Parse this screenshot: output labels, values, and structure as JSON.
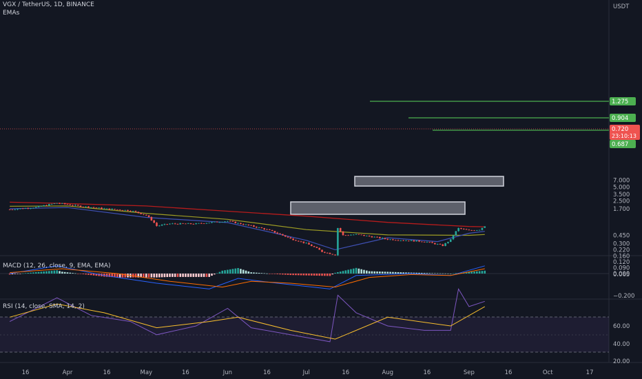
{
  "header": {
    "symbol_line": "VGX / TetherUS, 1D, BINANCE",
    "indicator_label": "EMAs"
  },
  "axis": {
    "currency": "USDT",
    "price_ticks": [
      "7.000",
      "5.000",
      "3.500",
      "2.500",
      "1.700",
      "0.450",
      "0.300",
      "0.220",
      "0.160",
      "0.120",
      "0.090",
      "0.065"
    ],
    "x_ticks": [
      "16",
      "Apr",
      "16",
      "May",
      "16",
      "Jun",
      "16",
      "Jul",
      "16",
      "Aug",
      "16",
      "Sep",
      "16",
      "Oct",
      "17"
    ]
  },
  "badges": {
    "level_1": "1.275",
    "level_2": "0.904",
    "last_price": "0.720",
    "countdown": "23:10:13",
    "level_3": "0.687"
  },
  "macd": {
    "label": "MACD (12, 26, close, 9, EMA, EMA)",
    "ticks": [
      "0.000",
      "−0.200"
    ]
  },
  "rsi": {
    "label": "RSI (14, close, SMA, 14, 2)",
    "ticks": [
      "60.00",
      "40.00",
      "20.00"
    ]
  },
  "colors": {
    "background": "#131722",
    "up": "#26a69a",
    "down": "#ef5350",
    "level_line": "#4caf50",
    "ema_long": "#b71c1c",
    "ema_mid": "#9e9d24",
    "ema_short": "#3f51b5",
    "rsi": "#7e57c2",
    "rsi_ma": "#fbc02d"
  },
  "chart_data": {
    "type": "line",
    "scale": "log",
    "price_series": [
      [
        "Mar 10",
        1.63
      ],
      [
        "Mar 20",
        1.82
      ],
      [
        "Mar 28",
        2.25
      ],
      [
        "Apr 5",
        1.95
      ],
      [
        "Apr 15",
        1.7
      ],
      [
        "Apr 25",
        1.55
      ],
      [
        "May 1",
        1.22
      ],
      [
        "May 5",
        0.72
      ],
      [
        "May 10",
        0.8
      ],
      [
        "May 20",
        0.8
      ],
      [
        "Jun 1",
        0.92
      ],
      [
        "Jun 5",
        0.82
      ],
      [
        "Jun 15",
        0.62
      ],
      [
        "Jun 25",
        0.38
      ],
      [
        "Jul 1",
        0.3
      ],
      [
        "Jul 7",
        0.2
      ],
      [
        "Jul 12",
        0.17
      ],
      [
        "Jul 13",
        0.65
      ],
      [
        "Jul 15",
        0.45
      ],
      [
        "Jul 20",
        0.47
      ],
      [
        "Aug 1",
        0.37
      ],
      [
        "Aug 15",
        0.33
      ],
      [
        "Aug 22",
        0.27
      ],
      [
        "Aug 25",
        0.36
      ],
      [
        "Aug 28",
        0.64
      ],
      [
        "Sep 1",
        0.57
      ],
      [
        "Sep 5",
        0.6
      ],
      [
        "Sep 7",
        0.72
      ]
    ],
    "ema_long": [
      [
        "Mar 10",
        2.35
      ],
      [
        "Apr 1",
        2.2
      ],
      [
        "May 1",
        1.95
      ],
      [
        "Jun 1",
        1.5
      ],
      [
        "Jul 1",
        1.17
      ],
      [
        "Aug 1",
        0.86
      ],
      [
        "Sep 1",
        0.7
      ],
      [
        "Sep 7",
        0.69
      ]
    ],
    "ema_mid": [
      [
        "Mar 10",
        1.92
      ],
      [
        "Apr 1",
        1.95
      ],
      [
        "May 1",
        1.35
      ],
      [
        "Jun 1",
        1.0
      ],
      [
        "Jul 1",
        0.6
      ],
      [
        "Aug 1",
        0.46
      ],
      [
        "Sep 1",
        0.45
      ],
      [
        "Sep 7",
        0.47
      ]
    ],
    "ema_short": [
      [
        "Mar 10",
        1.7
      ],
      [
        "Apr 1",
        1.8
      ],
      [
        "May 1",
        1.1
      ],
      [
        "Jun 1",
        0.85
      ],
      [
        "Jul 1",
        0.35
      ],
      [
        "Jul 12",
        0.22
      ],
      [
        "Aug 1",
        0.4
      ],
      [
        "Aug 20",
        0.33
      ],
      [
        "Sep 1",
        0.5
      ],
      [
        "Sep 7",
        0.55
      ]
    ],
    "horizontal_levels": [
      {
        "price": 1.275,
        "from": "Aug 1"
      },
      {
        "price": 0.904,
        "from": "Aug 15"
      },
      {
        "price": 0.687,
        "from": "Aug 20"
      }
    ],
    "zones": [
      {
        "top": 0.26,
        "bottom": 0.23,
        "from": "Jul 20",
        "to": "Sep 20"
      },
      {
        "top": 0.155,
        "bottom": 0.125,
        "from": "Jun 28",
        "to": "Sep 5"
      }
    ],
    "macd_line": [
      [
        "Mar 10",
        0.0
      ],
      [
        "Mar 28",
        0.08
      ],
      [
        "Apr 15",
        -0.02
      ],
      [
        "May 5",
        -0.1
      ],
      [
        "May 25",
        -0.16
      ],
      [
        "Jun 5",
        -0.05
      ],
      [
        "Jun 20",
        -0.1
      ],
      [
        "Jul 10",
        -0.16
      ],
      [
        "Jul 20",
        -0.02
      ],
      [
        "Aug 10",
        0.0
      ],
      [
        "Aug 25",
        -0.02
      ],
      [
        "Sep 7",
        0.08
      ]
    ],
    "signal_line": [
      [
        "Mar 10",
        0.01
      ],
      [
        "Mar 30",
        0.05
      ],
      [
        "Apr 20",
        0.0
      ],
      [
        "May 10",
        -0.08
      ],
      [
        "May 30",
        -0.14
      ],
      [
        "Jun 10",
        -0.08
      ],
      [
        "Jun 25",
        -0.1
      ],
      [
        "Jul 12",
        -0.14
      ],
      [
        "Jul 25",
        -0.04
      ],
      [
        "Aug 10",
        -0.01
      ],
      [
        "Aug 25",
        -0.02
      ],
      [
        "Sep 7",
        0.05
      ]
    ],
    "rsi_values": [
      [
        "Mar 10",
        45
      ],
      [
        "Mar 28",
        72
      ],
      [
        "Apr 10",
        52
      ],
      [
        "Apr 25",
        45
      ],
      [
        "May 5",
        30
      ],
      [
        "May 20",
        40
      ],
      [
        "Jun 1",
        60
      ],
      [
        "Jun 10",
        38
      ],
      [
        "Jun 25",
        30
      ],
      [
        "Jul 10",
        22
      ],
      [
        "Jul 13",
        75
      ],
      [
        "Jul 20",
        55
      ],
      [
        "Aug 1",
        40
      ],
      [
        "Aug 15",
        35
      ],
      [
        "Aug 25",
        35
      ],
      [
        "Aug 28",
        82
      ],
      [
        "Sep 1",
        62
      ],
      [
        "Sep 7",
        68
      ]
    ],
    "rsi_ma": [
      [
        "Mar 10",
        50
      ],
      [
        "Mar 28",
        65
      ],
      [
        "Apr 15",
        55
      ],
      [
        "May 5",
        38
      ],
      [
        "May 25",
        45
      ],
      [
        "Jun 5",
        50
      ],
      [
        "Jun 25",
        35
      ],
      [
        "Jul 12",
        25
      ],
      [
        "Aug 1",
        50
      ],
      [
        "Aug 25",
        40
      ],
      [
        "Sep 7",
        62
      ]
    ],
    "rsi_guides": [
      70,
      50,
      30
    ]
  }
}
